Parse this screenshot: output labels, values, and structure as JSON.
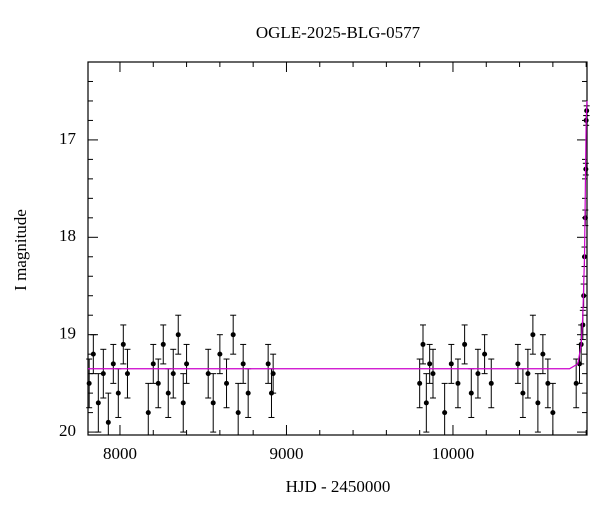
{
  "chart_data": {
    "type": "lightcurve",
    "title": "OGLE-2025-BLG-0577",
    "xlabel": "HJD - 2450000",
    "ylabel": "I magnitude",
    "xlim": [
      7808,
      10805
    ],
    "ylim": [
      20.03,
      16.2
    ],
    "xticks": [
      8000,
      9000,
      10000
    ],
    "yticks": [
      17,
      18,
      19,
      20
    ],
    "xminor_ticks": [
      7800,
      8200,
      8400,
      8600,
      8800,
      9200,
      9400,
      9600,
      9800,
      10200,
      10400,
      10600,
      10800
    ],
    "yminor_ticks": [
      16.2,
      16.4,
      16.6,
      16.8,
      17.2,
      17.4,
      17.6,
      17.8,
      18.2,
      18.4,
      18.6,
      18.8,
      19.2,
      19.4,
      19.6,
      19.8
    ],
    "points": {
      "color": "#000000",
      "x": [
        7815,
        7840,
        7870,
        7900,
        7930,
        7960,
        7990,
        8020,
        8045,
        8170,
        8200,
        8230,
        8260,
        8290,
        8320,
        8350,
        8380,
        8400,
        8530,
        8560,
        8600,
        8640,
        8680,
        8710,
        8740,
        8770,
        8890,
        8910,
        8920,
        9800,
        9820,
        9840,
        9860,
        9880,
        9950,
        9990,
        10030,
        10070,
        10110,
        10150,
        10190,
        10230,
        10390,
        10420,
        10450,
        10480,
        10510,
        10540,
        10570,
        10600,
        10740,
        10760,
        10770,
        10780,
        10785,
        10790,
        10795,
        10798,
        10800,
        10803
      ],
      "y": [
        19.5,
        19.2,
        19.7,
        19.4,
        19.9,
        19.3,
        19.6,
        19.1,
        19.4,
        19.8,
        19.3,
        19.5,
        19.1,
        19.6,
        19.4,
        19.0,
        19.7,
        19.3,
        19.4,
        19.7,
        19.2,
        19.5,
        19.0,
        19.8,
        19.3,
        19.6,
        19.3,
        19.6,
        19.4,
        19.5,
        19.1,
        19.7,
        19.3,
        19.4,
        19.8,
        19.3,
        19.5,
        19.1,
        19.6,
        19.4,
        19.2,
        19.5,
        19.3,
        19.6,
        19.4,
        19.0,
        19.7,
        19.2,
        19.5,
        19.8,
        19.5,
        19.3,
        19.1,
        18.9,
        18.6,
        18.2,
        17.8,
        17.3,
        16.8,
        16.7
      ],
      "err": [
        0.25,
        0.2,
        0.3,
        0.25,
        0.3,
        0.2,
        0.25,
        0.2,
        0.25,
        0.3,
        0.2,
        0.25,
        0.2,
        0.25,
        0.25,
        0.2,
        0.3,
        0.2,
        0.25,
        0.3,
        0.2,
        0.25,
        0.2,
        0.3,
        0.2,
        0.25,
        0.2,
        0.25,
        0.2,
        0.25,
        0.2,
        0.3,
        0.2,
        0.25,
        0.3,
        0.2,
        0.25,
        0.2,
        0.25,
        0.25,
        0.2,
        0.25,
        0.2,
        0.25,
        0.25,
        0.2,
        0.3,
        0.2,
        0.25,
        0.3,
        0.25,
        0.2,
        0.2,
        0.15,
        0.12,
        0.1,
        0.08,
        0.06,
        0.05,
        0.05
      ]
    },
    "model": {
      "color": "#cc00cc",
      "x": [
        7808,
        10700,
        10750,
        10770,
        10780,
        10790,
        10795,
        10800,
        10805
      ],
      "y": [
        19.35,
        19.35,
        19.3,
        19.1,
        18.8,
        18.2,
        17.5,
        16.8,
        16.6
      ]
    }
  }
}
